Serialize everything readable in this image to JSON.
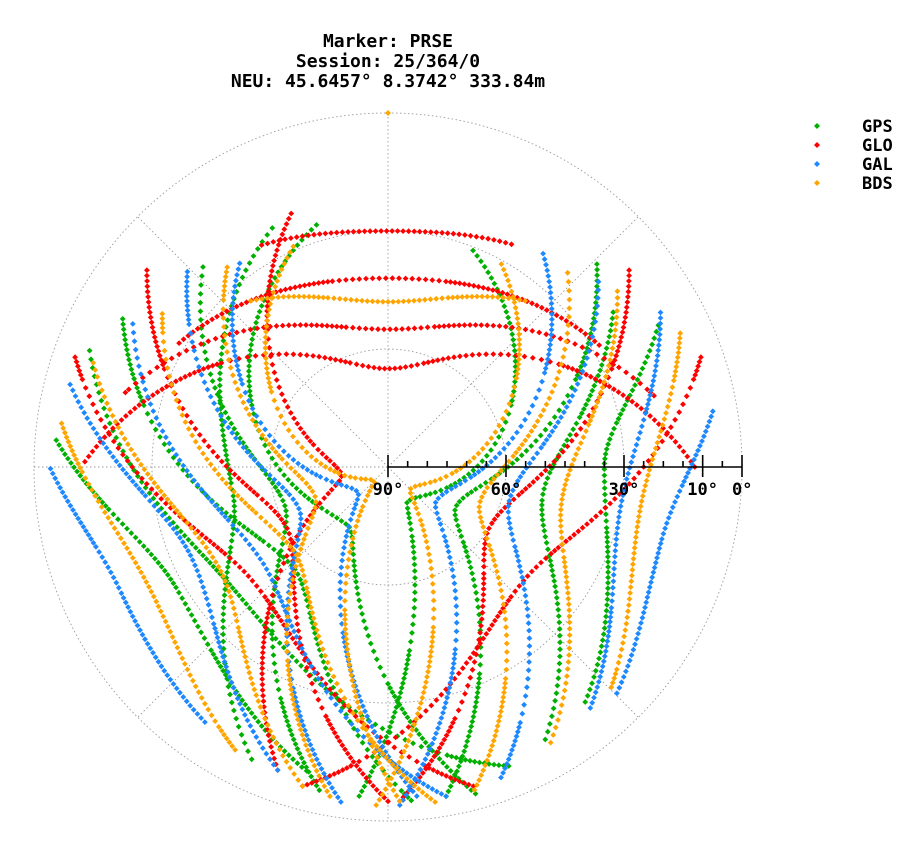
{
  "title": {
    "line1": "Marker: PRSE",
    "line2": "Session: 25/364/0",
    "line3": "NEU: 45.6457° 8.3742° 333.84m"
  },
  "chart_data": {
    "type": "scatter",
    "coordinate_system": "polar sky plot (azimuth clockwise from north, elevation 90° at centre to 0° at rim)",
    "radial_ticks": [
      {
        "elevation": 90,
        "label": "90°"
      },
      {
        "elevation": 60,
        "label": "60°"
      },
      {
        "elevation": 30,
        "label": "30°"
      },
      {
        "elevation": 10,
        "label": "10°"
      },
      {
        "elevation": 0,
        "label": "0°"
      }
    ],
    "elevation_range": [
      0,
      90
    ],
    "grid": true,
    "legend_placement": "top-right",
    "series": [
      {
        "name": "GPS",
        "color": "#00b000",
        "tracks": [
          {
            "az_start": 292,
            "el_start": 8,
            "az_end": 158,
            "el_end": 8,
            "az_peak": 230,
            "el_peak": 40
          },
          {
            "az_start": 300,
            "el_start": 12,
            "az_end": 176,
            "el_end": 5,
            "az_peak": 225,
            "el_peak": 55
          },
          {
            "az_start": 318,
            "el_start": 20,
            "az_end": 192,
            "el_end": 6,
            "az_peak": 250,
            "el_peak": 62
          },
          {
            "az_start": 335,
            "el_start": 22,
            "az_end": 205,
            "el_end": 8,
            "az_peak": 260,
            "el_peak": 50
          },
          {
            "az_start": 55,
            "el_start": 20,
            "az_end": 150,
            "el_end": 10,
            "az_peak": 100,
            "el_peak": 50
          },
          {
            "az_start": 45,
            "el_start": 15,
            "az_end": 170,
            "el_end": 5,
            "az_peak": 120,
            "el_peak": 70
          },
          {
            "az_start": 62,
            "el_start": 12,
            "az_end": 140,
            "el_end": 12,
            "az_peak": 90,
            "el_peak": 35
          },
          {
            "az_start": 275,
            "el_start": 5,
            "az_end": 195,
            "el_end": 10,
            "az_peak": 240,
            "el_peak": 28
          },
          {
            "az_start": 345,
            "el_start": 25,
            "az_end": 165,
            "el_end": 4,
            "az_peak": 215,
            "el_peak": 72
          },
          {
            "az_start": 20,
            "el_start": 30,
            "az_end": 185,
            "el_end": 6,
            "az_peak": 150,
            "el_peak": 80
          }
        ]
      },
      {
        "name": "GLO",
        "color": "#ff0000",
        "tracks": [
          {
            "az_start": 330,
            "el_start": 25,
            "az_end": 30,
            "el_end": 25,
            "az_peak": 0,
            "el_peak": 30
          },
          {
            "az_start": 300,
            "el_start": 28,
            "az_end": 60,
            "el_end": 28,
            "az_peak": 0,
            "el_peak": 42
          },
          {
            "az_start": 285,
            "el_start": 20,
            "az_end": 75,
            "el_end": 20,
            "az_peak": 0,
            "el_peak": 55
          },
          {
            "az_start": 270,
            "el_start": 12,
            "az_end": 90,
            "el_end": 12,
            "az_peak": 0,
            "el_peak": 65
          },
          {
            "az_start": 310,
            "el_start": 10,
            "az_end": 180,
            "el_end": 5,
            "az_peak": 240,
            "el_peak": 60
          },
          {
            "az_start": 50,
            "el_start": 10,
            "az_end": 178,
            "el_end": 5,
            "az_peak": 120,
            "el_peak": 60
          },
          {
            "az_start": 290,
            "el_start": 5,
            "az_end": 165,
            "el_end": 6,
            "az_peak": 230,
            "el_peak": 45
          },
          {
            "az_start": 70,
            "el_start": 5,
            "az_end": 195,
            "el_end": 6,
            "az_peak": 130,
            "el_peak": 45
          },
          {
            "az_start": 340,
            "el_start": 20,
            "az_end": 200,
            "el_end": 8,
            "az_peak": 260,
            "el_peak": 78
          }
        ]
      },
      {
        "name": "GAL",
        "color": "#1e88ff",
        "tracks": [
          {
            "az_start": 300,
            "el_start": 15,
            "az_end": 170,
            "el_end": 5,
            "az_peak": 235,
            "el_peak": 50
          },
          {
            "az_start": 315,
            "el_start": 18,
            "az_end": 188,
            "el_end": 4,
            "az_peak": 245,
            "el_peak": 65
          },
          {
            "az_start": 285,
            "el_start": 6,
            "az_end": 200,
            "el_end": 8,
            "az_peak": 245,
            "el_peak": 35
          },
          {
            "az_start": 48,
            "el_start": 18,
            "az_end": 160,
            "el_end": 6,
            "az_peak": 105,
            "el_peak": 58
          },
          {
            "az_start": 60,
            "el_start": 10,
            "az_end": 140,
            "el_end": 10,
            "az_peak": 100,
            "el_peak": 30
          },
          {
            "az_start": 35,
            "el_start": 22,
            "az_end": 178,
            "el_end": 4,
            "az_peak": 125,
            "el_peak": 75
          },
          {
            "az_start": 325,
            "el_start": 25,
            "az_end": 175,
            "el_end": 6,
            "az_peak": 230,
            "el_peak": 80
          },
          {
            "az_start": 80,
            "el_start": 6,
            "az_end": 135,
            "el_end": 8,
            "az_peak": 105,
            "el_peak": 18
          },
          {
            "az_start": 270,
            "el_start": 4,
            "az_end": 215,
            "el_end": 10,
            "az_peak": 245,
            "el_peak": 15
          }
        ]
      },
      {
        "name": "BDS",
        "color": "#ffa500",
        "tracks": [
          {
            "az_start": 305,
            "el_start": 20,
            "az_end": 172,
            "el_end": 4,
            "az_peak": 230,
            "el_peak": 58
          },
          {
            "az_start": 322,
            "el_start": 24,
            "az_end": 190,
            "el_end": 5,
            "az_peak": 248,
            "el_peak": 70
          },
          {
            "az_start": 290,
            "el_start": 10,
            "az_end": 195,
            "el_end": 6,
            "az_peak": 240,
            "el_peak": 40
          },
          {
            "az_start": 42,
            "el_start": 22,
            "az_end": 165,
            "el_end": 5,
            "az_peak": 110,
            "el_peak": 65
          },
          {
            "az_start": 52,
            "el_start": 16,
            "az_end": 150,
            "el_end": 8,
            "az_peak": 100,
            "el_peak": 45
          },
          {
            "az_start": 65,
            "el_start": 8,
            "az_end": 135,
            "el_end": 10,
            "az_peak": 100,
            "el_peak": 25
          },
          {
            "az_start": 28,
            "el_start": 30,
            "az_end": 182,
            "el_end": 4,
            "az_peak": 135,
            "el_peak": 82
          },
          {
            "az_start": 338,
            "el_start": 28,
            "az_end": 178,
            "el_end": 5,
            "az_peak": 225,
            "el_peak": 85
          },
          {
            "az_start": 278,
            "el_start": 6,
            "az_end": 208,
            "el_end": 8,
            "az_peak": 243,
            "el_peak": 22
          },
          {
            "az_start": 40,
            "el_start": 35,
            "az_end": 320,
            "el_end": 35,
            "az_peak": 0,
            "el_peak": 48
          }
        ]
      }
    ]
  }
}
